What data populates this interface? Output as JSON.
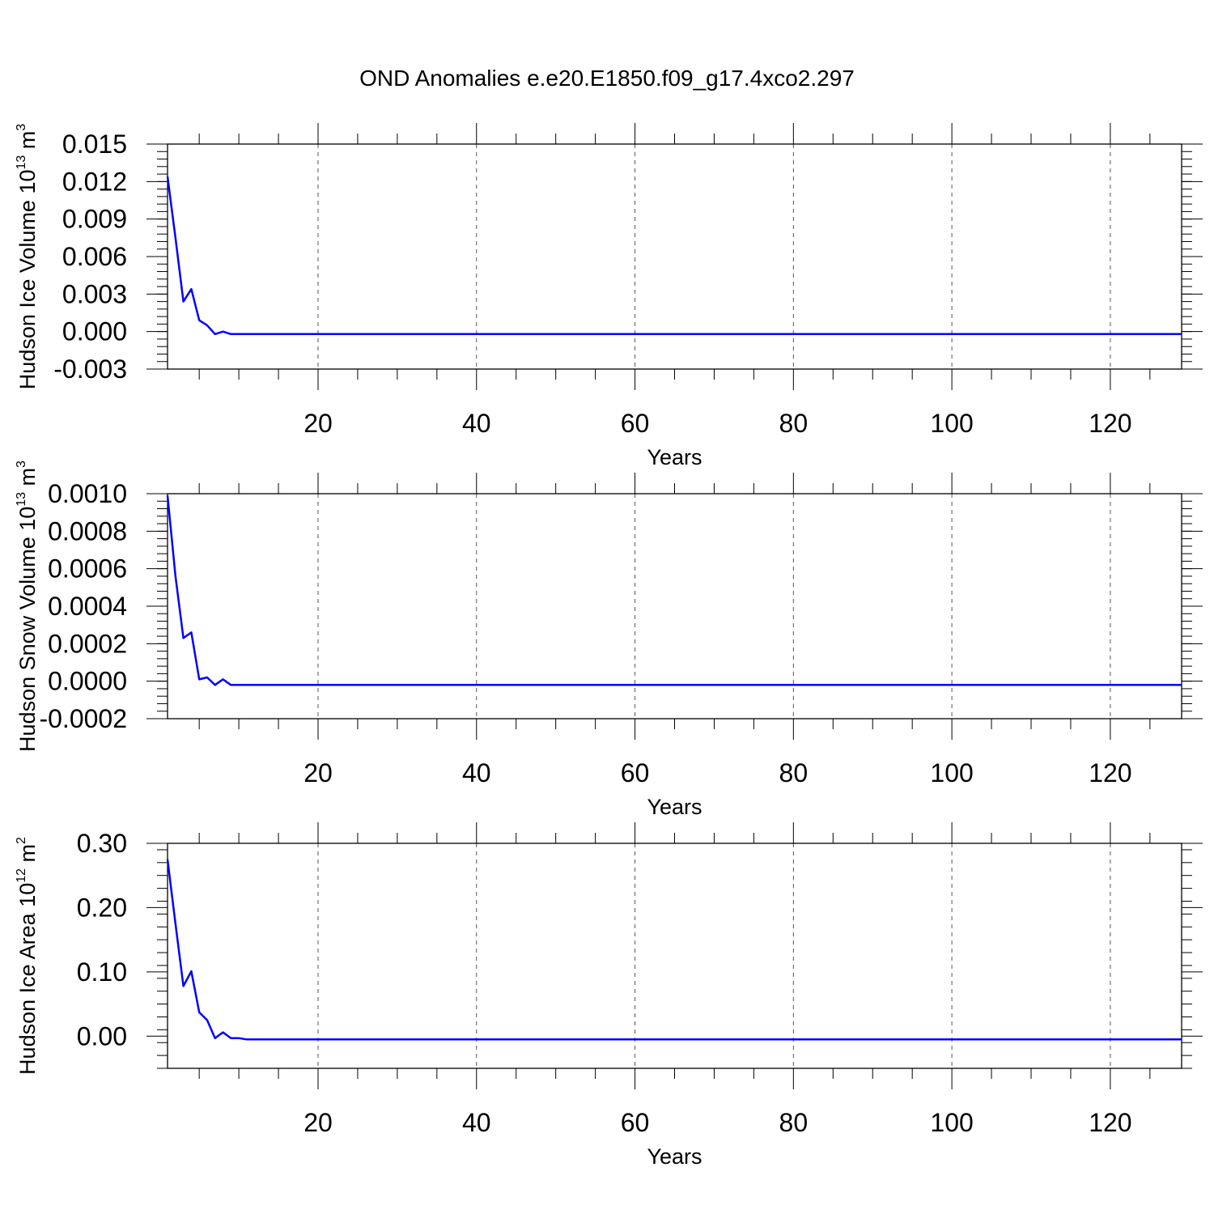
{
  "title": "OND Anomalies e.e20.E1850.f09_g17.4xco2.297",
  "line_color": "#0000ff",
  "chart_data": [
    {
      "type": "line",
      "xlabel": "Years",
      "ylabel_main": "Hudson Ice Volume 10",
      "ylabel_exp": "13",
      "ylabel_unit": " m",
      "ylabel_unit_exp": "3",
      "xlim": [
        1,
        129
      ],
      "ylim": [
        -0.003,
        0.015
      ],
      "xticks": [
        "20",
        "40",
        "60",
        "80",
        "100",
        "120"
      ],
      "yticks": [
        "-0.003",
        "0.000",
        "0.003",
        "0.006",
        "0.009",
        "0.012",
        "0.015"
      ],
      "grid": "vertical dashed",
      "series": [
        {
          "x": [
            1,
            2,
            3,
            4,
            5,
            6,
            7,
            8,
            9,
            10,
            11,
            12,
            129
          ],
          "y": [
            0.0124,
            0.0075,
            0.0024,
            0.0034,
            0.0009,
            0.0005,
            -0.0002,
            0.0,
            -0.0002,
            -0.0002,
            -0.0002,
            -0.0002,
            -0.0002
          ]
        }
      ]
    },
    {
      "type": "line",
      "xlabel": "Years",
      "ylabel_main": "Hudson Snow Volume 10",
      "ylabel_exp": "13",
      "ylabel_unit": " m",
      "ylabel_unit_exp": "3",
      "xlim": [
        1,
        129
      ],
      "ylim": [
        -0.0002,
        0.001
      ],
      "xticks": [
        "20",
        "40",
        "60",
        "80",
        "100",
        "120"
      ],
      "yticks": [
        "-0.0002",
        "0.0000",
        "0.0002",
        "0.0004",
        "0.0006",
        "0.0008",
        "0.0010"
      ],
      "grid": "vertical dashed",
      "series": [
        {
          "x": [
            1,
            2,
            3,
            4,
            5,
            6,
            7,
            8,
            9,
            10,
            11,
            12,
            129
          ],
          "y": [
            0.00099,
            0.00056,
            0.00023,
            0.00026,
            1e-05,
            2e-05,
            -2e-05,
            1e-05,
            -2e-05,
            -2e-05,
            -2e-05,
            -2e-05,
            -2e-05
          ]
        }
      ]
    },
    {
      "type": "line",
      "xlabel": "Years",
      "ylabel_main": "Hudson Ice Area 10",
      "ylabel_exp": "12",
      "ylabel_unit": " m",
      "ylabel_unit_exp": "2",
      "xlim": [
        1,
        129
      ],
      "ylim": [
        -0.05,
        0.3
      ],
      "xticks": [
        "20",
        "40",
        "60",
        "80",
        "100",
        "120"
      ],
      "yticks": [
        "0.00",
        "0.10",
        "0.20",
        "0.30"
      ],
      "grid": "vertical dashed",
      "series": [
        {
          "x": [
            1,
            2,
            3,
            4,
            5,
            6,
            7,
            8,
            9,
            10,
            11,
            12,
            129
          ],
          "y": [
            0.275,
            0.175,
            0.078,
            0.101,
            0.037,
            0.025,
            -0.003,
            0.006,
            -0.003,
            -0.003,
            -0.005,
            -0.005,
            -0.005
          ]
        }
      ]
    }
  ]
}
